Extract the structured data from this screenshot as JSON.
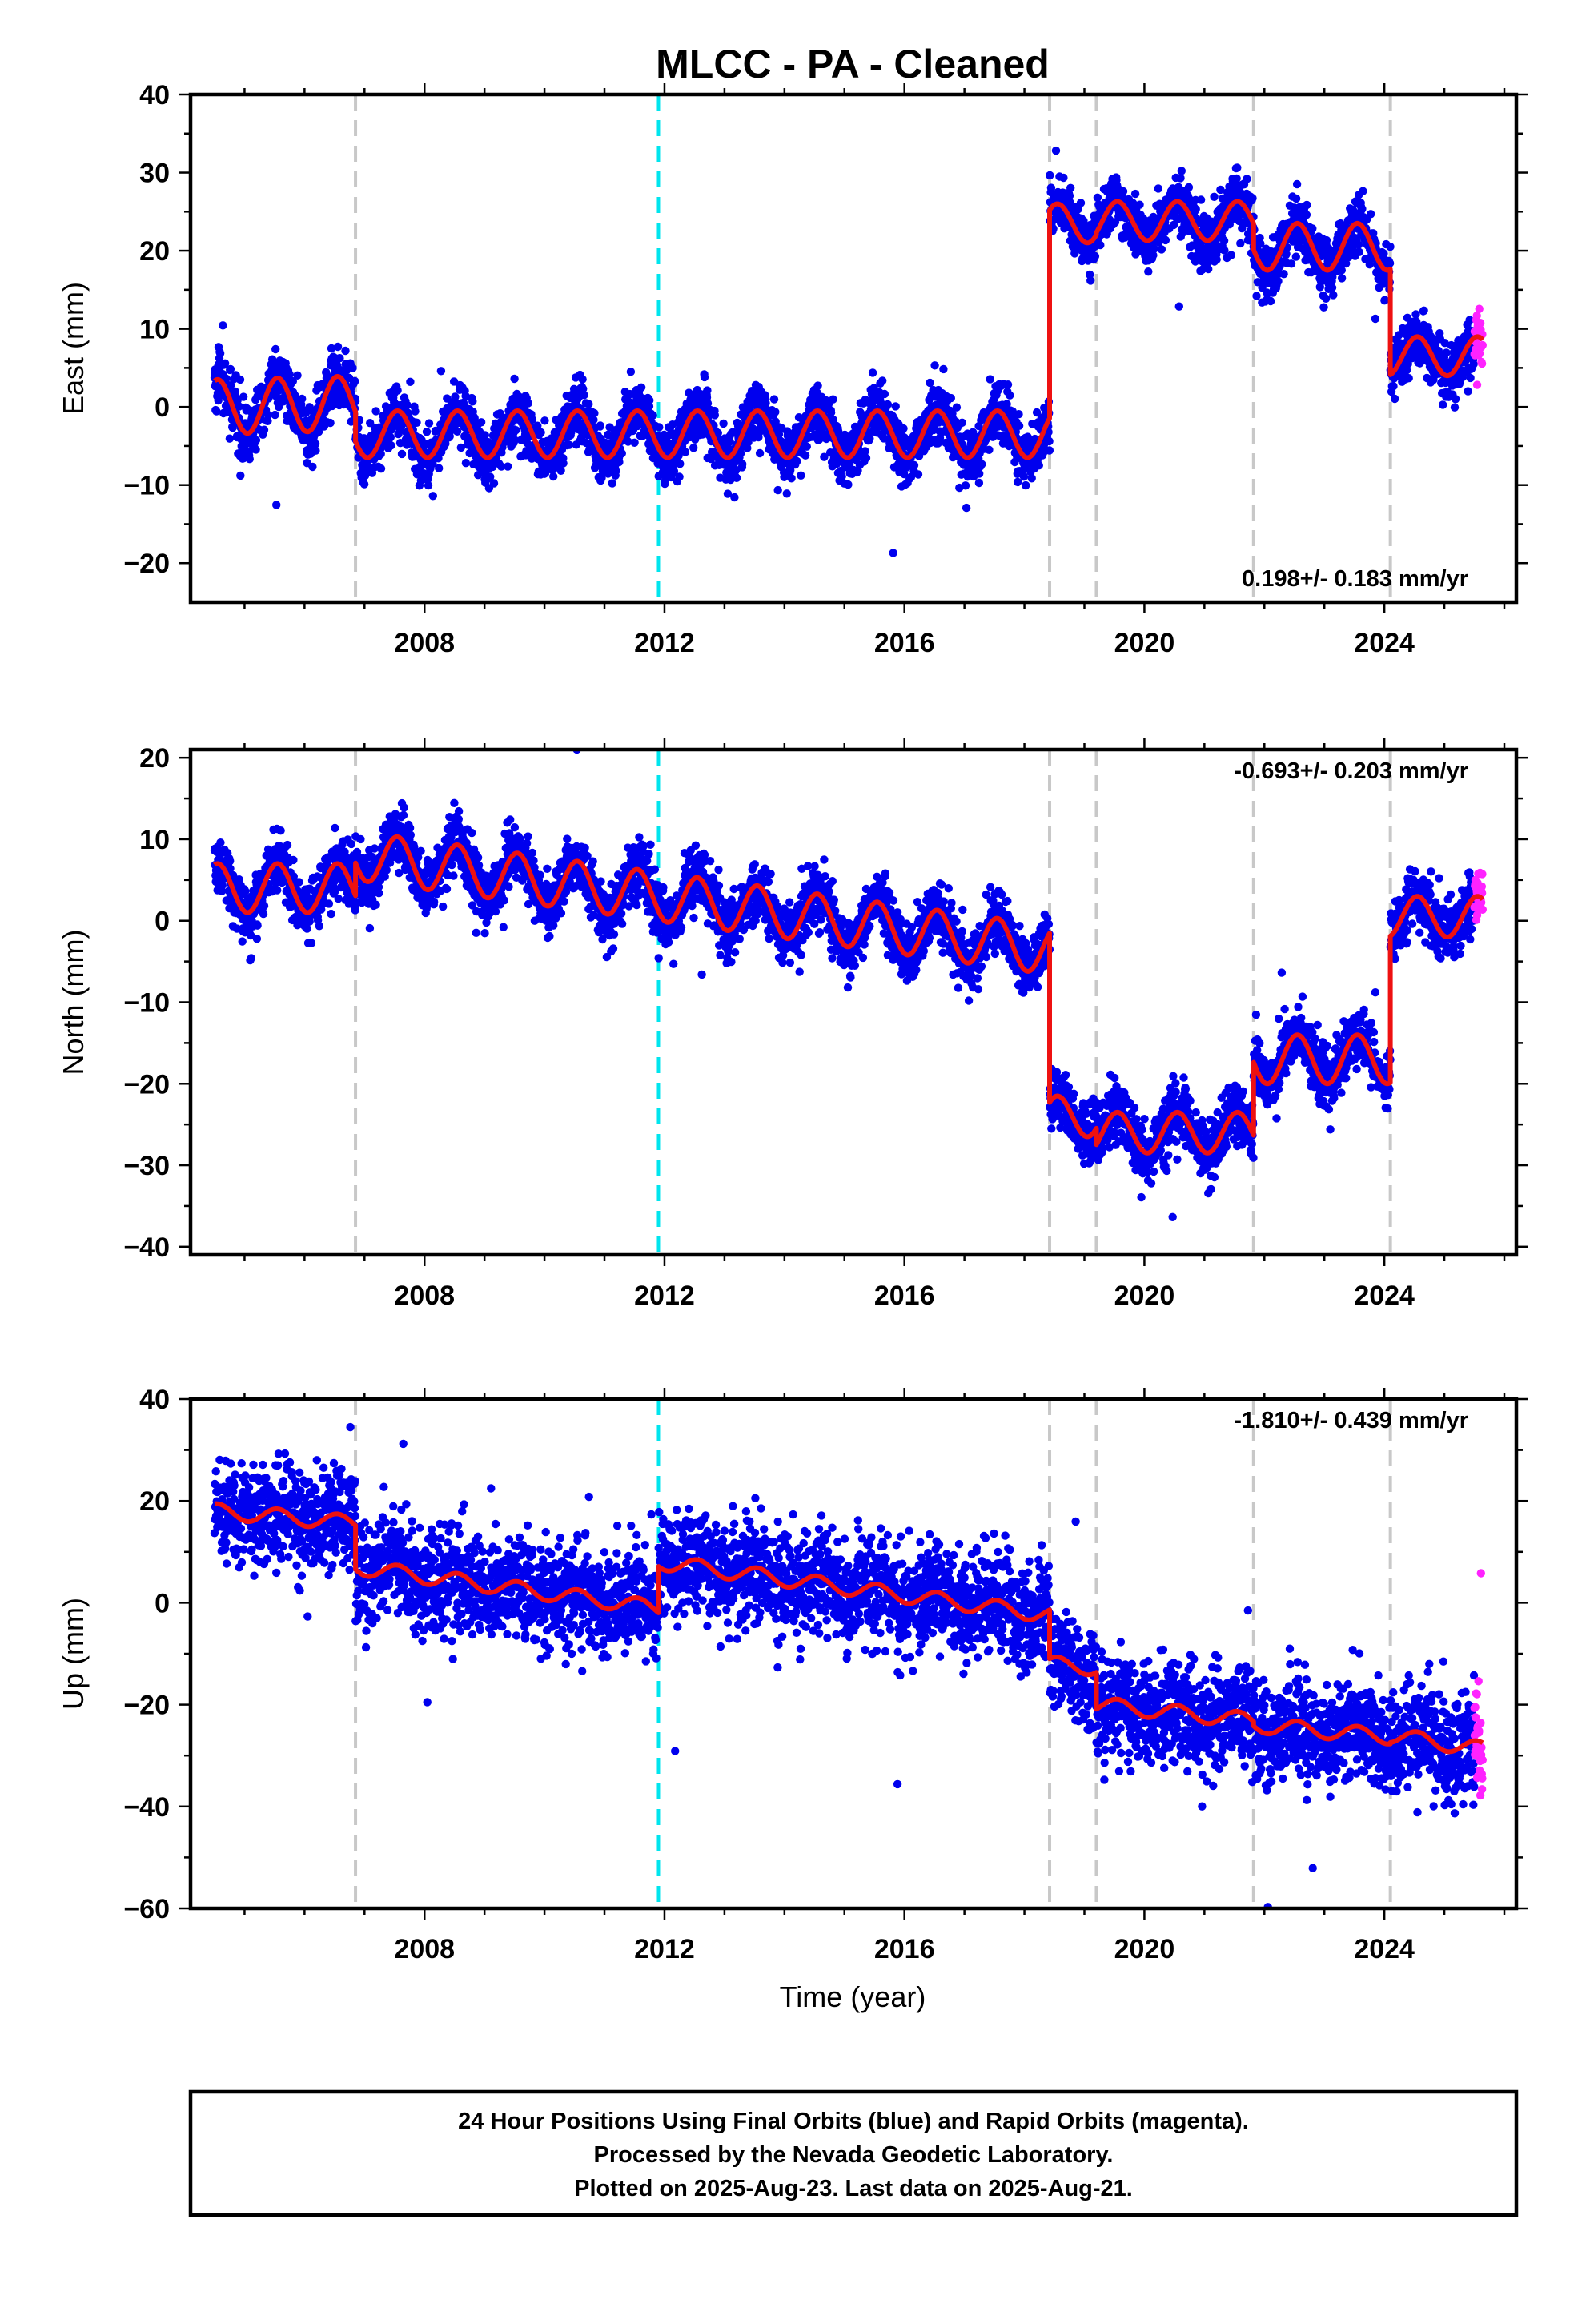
{
  "title": "MLCC  - PA - Cleaned",
  "xlabel": "Time (year)",
  "x_ticks": [
    2008,
    2012,
    2016,
    2020,
    2024
  ],
  "x_tick_labels": [
    "2008",
    "2012",
    "2016",
    "2020",
    "2024"
  ],
  "caption": {
    "line1": "24 Hour Positions Using Final Orbits (blue) and Rapid Orbits (magenta).",
    "line2": "Processed by the Nevada Geodetic Laboratory.",
    "line3": "Plotted on 2025-Aug-23. Last data on 2025-Aug-21."
  },
  "colors": {
    "final_orbits": "#0000ee",
    "rapid_orbits": "#ff22ff",
    "model": "#ee1111",
    "equipment_change": "#c8c8c8",
    "earthquake": "#00e5ee"
  },
  "chart_data": [
    {
      "type": "scatter",
      "panel": "east",
      "ylabel": "East (mm)",
      "xlim": [
        2004.1,
        2026.2
      ],
      "ylim": [
        -25,
        40
      ],
      "y_ticks": [
        -20,
        -10,
        0,
        10,
        20,
        30,
        40
      ],
      "y_tick_labels": [
        "−20",
        "−10",
        "0",
        "10",
        "20",
        "30",
        "40"
      ],
      "rate_label": "0.198+/- 0.183 mm/yr",
      "rate_position": "bottom-right",
      "data_start": 2004.5,
      "data_end": 2025.64,
      "rapid_start": 2025.5,
      "steps": [
        2006.85,
        2018.42,
        2019.2,
        2021.82,
        2024.1
      ],
      "equipment_breaks": [
        2006.85,
        2018.42,
        2019.2,
        2021.82,
        2024.1
      ],
      "earthquake_breaks": [
        2011.9
      ],
      "model_segments": [
        {
          "start": 2004.5,
          "end": 2006.85,
          "y0": 0.0,
          "slope": 0.2,
          "amp": 3.5
        },
        {
          "start": 2006.85,
          "end": 2018.42,
          "y0": -3.5,
          "slope": 0.0,
          "amp": 3.0
        },
        {
          "start": 2018.42,
          "end": 2019.2,
          "y0": 23.5,
          "slope": 0.0,
          "amp": 2.5
        },
        {
          "start": 2019.2,
          "end": 2021.82,
          "y0": 23.8,
          "slope": 0.0,
          "amp": 2.5
        },
        {
          "start": 2021.82,
          "end": 2024.1,
          "y0": 20.5,
          "slope": 0.0,
          "amp": 3.0
        },
        {
          "start": 2024.1,
          "end": 2025.64,
          "y0": 6.5,
          "slope": 0.0,
          "amp": 2.5
        }
      ],
      "noise": 1.8
    },
    {
      "type": "scatter",
      "panel": "north",
      "ylabel": "North (mm)",
      "xlim": [
        2004.1,
        2026.2
      ],
      "ylim": [
        -41,
        21
      ],
      "y_ticks": [
        -40,
        -30,
        -20,
        -10,
        0,
        10,
        20
      ],
      "y_tick_labels": [
        "−40",
        "−30",
        "−20",
        "−10",
        "0",
        "10",
        "20"
      ],
      "rate_label": "-0.693+/- 0.203 mm/yr",
      "rate_position": "top-right",
      "data_start": 2004.5,
      "data_end": 2025.64,
      "rapid_start": 2025.5,
      "steps": [
        2006.85,
        2018.42,
        2019.2,
        2021.82,
        2024.1
      ],
      "equipment_breaks": [
        2006.85,
        2018.42,
        2019.2,
        2021.82,
        2024.1
      ],
      "earthquake_breaks": [
        2011.9
      ],
      "model_segments": [
        {
          "start": 2004.5,
          "end": 2006.85,
          "y0": 4.0,
          "slope": 0.0,
          "amp": 3.0
        },
        {
          "start": 2006.85,
          "end": 2018.42,
          "y0": 8.0,
          "slope": -1.0,
          "amp": 3.0
        },
        {
          "start": 2018.42,
          "end": 2019.2,
          "y0": -24.0,
          "slope": 0.0,
          "amp": 2.5
        },
        {
          "start": 2019.2,
          "end": 2021.82,
          "y0": -26.0,
          "slope": 0.0,
          "amp": 2.5
        },
        {
          "start": 2021.82,
          "end": 2024.1,
          "y0": -17.0,
          "slope": 0.0,
          "amp": 3.0
        },
        {
          "start": 2024.1,
          "end": 2025.64,
          "y0": 0.5,
          "slope": 0.0,
          "amp": 2.5
        }
      ],
      "noise": 1.8
    },
    {
      "type": "scatter",
      "panel": "up",
      "ylabel": "Up (mm)",
      "xlim": [
        2004.1,
        2026.2
      ],
      "ylim": [
        -60,
        40
      ],
      "y_ticks": [
        -60,
        -40,
        -20,
        0,
        20,
        40
      ],
      "y_tick_labels": [
        "−60",
        "−40",
        "−20",
        "0",
        "20",
        "40"
      ],
      "rate_label": "-1.810+/- 0.439 mm/yr",
      "rate_position": "top-right",
      "data_start": 2004.5,
      "data_end": 2025.64,
      "rapid_start": 2025.5,
      "steps": [
        2006.85,
        2011.9,
        2018.42,
        2019.2,
        2021.82,
        2024.1
      ],
      "equipment_breaks": [
        2006.85,
        2018.42,
        2019.2,
        2021.82,
        2024.1
      ],
      "earthquake_breaks": [
        2011.9
      ],
      "model_segments": [
        {
          "start": 2004.5,
          "end": 2006.85,
          "y0": 18.0,
          "slope": -1.0,
          "amp": 1.5
        },
        {
          "start": 2006.85,
          "end": 2011.9,
          "y0": 7.0,
          "slope": -1.6,
          "amp": 1.5
        },
        {
          "start": 2011.9,
          "end": 2018.42,
          "y0": 8.0,
          "slope": -1.6,
          "amp": 1.5
        },
        {
          "start": 2018.42,
          "end": 2019.2,
          "y0": -12.0,
          "slope": -1.0,
          "amp": 1.5
        },
        {
          "start": 2019.2,
          "end": 2021.82,
          "y0": -20.0,
          "slope": -1.2,
          "amp": 1.5
        },
        {
          "start": 2021.82,
          "end": 2024.1,
          "y0": -24.0,
          "slope": -1.0,
          "amp": 1.5
        },
        {
          "start": 2024.1,
          "end": 2025.64,
          "y0": -26.0,
          "slope": -1.8,
          "amp": 1.5
        }
      ],
      "noise": 5.0
    }
  ]
}
